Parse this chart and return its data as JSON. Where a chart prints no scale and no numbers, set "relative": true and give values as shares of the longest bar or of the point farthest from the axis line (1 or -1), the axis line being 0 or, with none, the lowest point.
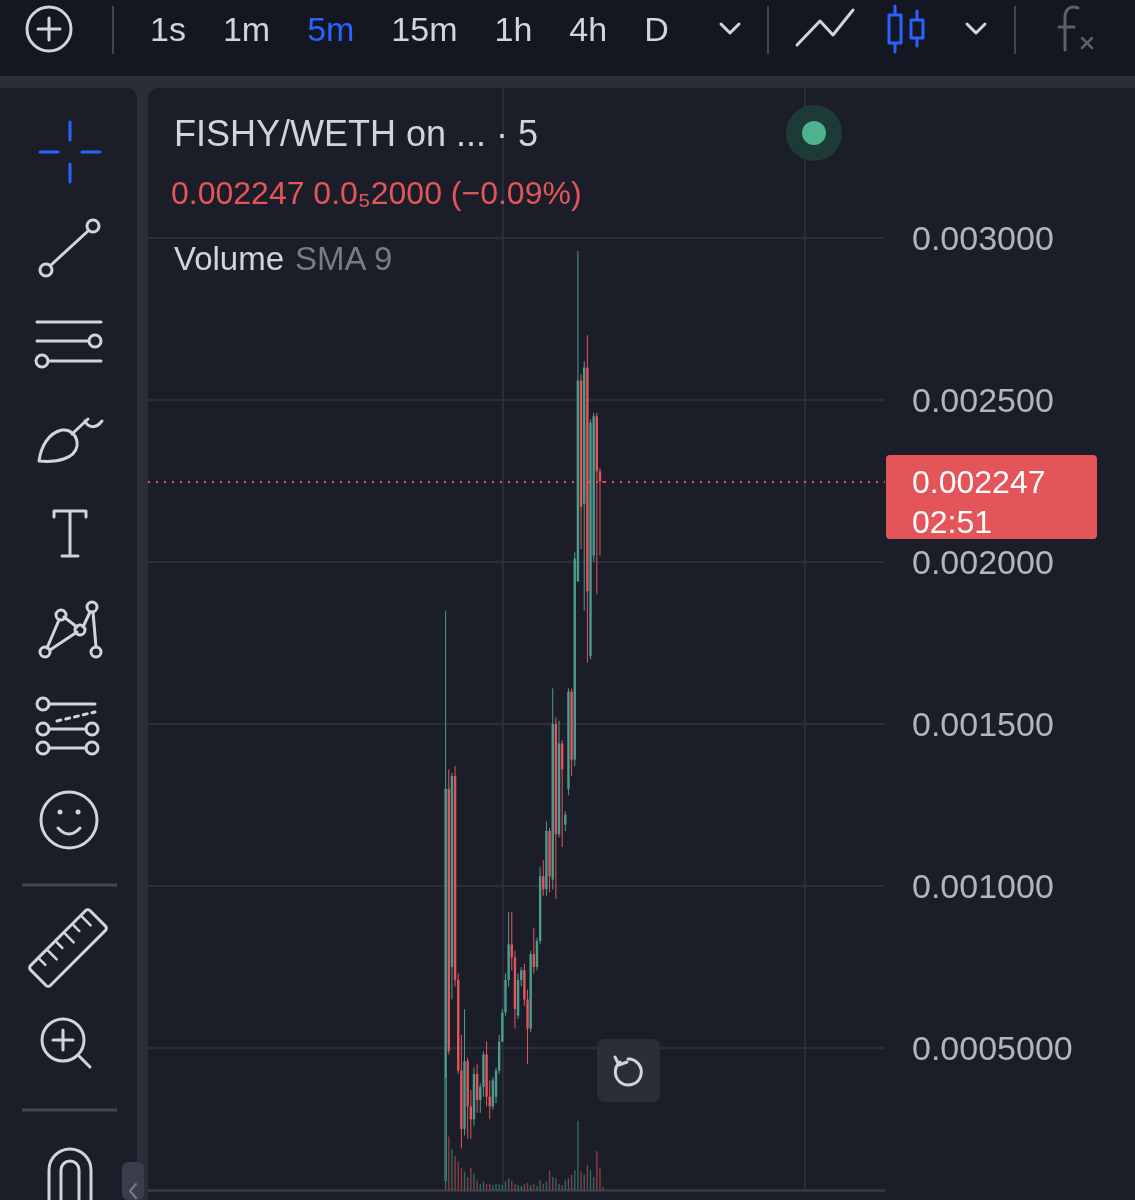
{
  "chart_data": [
    {
      "type": "candlestick",
      "title": "FISHY/WETH on ... · 5",
      "subtitle": "0.002247 0.0₅2000 (−0.09%)",
      "categories": [
        null,
        null,
        null,
        null,
        null,
        null,
        null,
        null,
        null,
        null,
        null,
        null,
        null,
        null,
        null,
        null,
        null,
        null,
        null,
        null,
        null,
        null,
        null,
        null,
        null,
        null,
        null,
        null,
        null,
        null,
        null,
        null,
        null,
        null,
        null,
        null,
        null,
        null,
        null,
        null,
        null,
        null,
        null,
        null,
        null,
        null,
        null,
        null,
        null,
        null,
        null,
        null,
        null,
        null,
        null,
        null,
        null,
        null,
        null,
        null,
        null,
        null,
        null,
        null,
        null,
        null,
        null,
        null,
        null,
        null,
        null,
        null,
        null,
        null,
        null,
        null,
        null,
        null,
        null,
        null,
        null,
        null,
        null,
        null,
        null,
        null,
        null,
        null,
        null,
        null,
        null,
        null,
        null,
        null,
        null,
        null,
        null,
        null,
        null,
        null,
        null,
        null,
        null,
        null,
        null,
        null,
        null,
        null,
        null,
        null,
        null,
        null,
        null,
        null,
        null,
        null,
        null,
        null,
        null,
        null,
        null,
        null,
        null,
        null,
        null,
        null,
        null,
        null,
        null,
        null,
        null,
        null,
        null,
        null,
        null,
        null,
        null,
        null,
        null,
        null,
        null,
        null,
        null,
        null,
        null,
        null,
        null,
        null,
        null,
        null,
        null,
        null,
        null,
        null,
        null,
        null,
        null,
        null,
        null,
        null,
        null,
        null,
        null,
        null,
        null,
        null,
        null,
        null,
        null,
        null,
        null,
        null,
        null,
        null,
        null,
        null,
        null,
        null,
        null,
        null,
        null,
        null,
        null,
        null,
        null,
        null,
        null,
        null,
        null,
        null,
        null,
        null,
        null,
        null,
        null,
        null,
        null,
        null,
        null,
        null,
        null,
        null,
        null,
        null,
        null,
        null,
        null,
        null,
        null,
        null,
        null,
        null,
        null,
        null,
        null,
        null,
        null,
        null,
        null,
        null,
        null,
        null,
        null,
        null,
        null,
        null,
        null,
        null,
        null,
        null,
        null,
        null,
        null,
        null
      ],
      "ohlc": [
        null,
        null,
        null,
        null,
        null,
        null,
        null,
        null,
        null,
        null,
        null,
        null,
        null,
        null,
        null,
        null,
        null,
        null,
        null,
        null,
        null,
        null,
        null,
        null,
        null,
        null,
        null,
        null,
        null,
        null,
        null,
        null,
        null,
        null,
        null,
        null,
        null,
        null,
        null,
        null,
        null,
        null,
        null,
        null,
        null,
        null,
        null,
        null,
        null,
        null,
        null,
        null,
        null,
        null,
        null,
        null,
        null,
        null,
        null,
        null,
        null,
        null,
        null,
        null,
        null,
        null,
        null,
        null,
        null,
        null,
        null,
        null,
        null,
        null,
        null,
        null,
        null,
        null,
        null,
        null,
        null,
        null,
        null,
        null,
        null,
        null,
        null,
        null,
        null,
        null,
        null,
        null,
        null,
        null,
        [
          9e-05,
          0.00185,
          8e-05,
          0.0013
        ],
        [
          0.0013,
          0.00136,
          0.00048,
          0.00049
        ],
        [
          0.00075,
          0.00135,
          0.00065,
          0.00134
        ],
        [
          0.00134,
          0.00137,
          0.00069,
          0.00071
        ],
        [
          0.00071,
          0.00073,
          0.00042,
          0.00043
        ],
        [
          0.00043,
          0.00054,
          0.00019,
          0.00025
        ],
        [
          0.00025,
          0.00062,
          0.00023,
          0.00046
        ],
        [
          0.00046,
          0.00047,
          0.00022,
          0.00032
        ],
        [
          0.00032,
          0.00037,
          0.00022,
          0.00028
        ],
        [
          0.00028,
          0.00044,
          0.00026,
          0.00042
        ],
        [
          0.00042,
          0.00045,
          0.0003,
          0.00034
        ],
        [
          0.00034,
          0.00039,
          0.0003,
          0.00038
        ],
        [
          0.00038,
          0.00049,
          0.00035,
          0.00048
        ],
        [
          0.00048,
          0.00052,
          0.00032,
          0.00035
        ],
        [
          0.00035,
          0.0004,
          0.00028,
          0.00032
        ],
        [
          0.00032,
          0.00041,
          0.00031,
          0.0004
        ],
        [
          0.00035,
          0.00044,
          0.00033,
          0.00043
        ],
        [
          0.00043,
          0.00054,
          0.00042,
          0.00052
        ],
        [
          0.00052,
          0.00062,
          0.00052,
          0.00061
        ],
        [
          0.00061,
          0.00073,
          0.0006,
          0.00071
        ],
        [
          0.00071,
          0.00092,
          0.00069,
          0.00082
        ],
        [
          0.00082,
          0.00092,
          0.00074,
          0.00078
        ],
        [
          0.00078,
          0.0008,
          0.00056,
          0.00062
        ],
        [
          0.0006,
          0.00073,
          0.00059,
          0.00071
        ],
        [
          0.00071,
          0.00075,
          0.00069,
          0.00074
        ],
        [
          0.00074,
          0.00076,
          0.00063,
          0.00065
        ],
        [
          0.00065,
          0.00068,
          0.00045,
          0.00056
        ],
        [
          0.00056,
          0.0008,
          0.00055,
          0.00079
        ],
        [
          0.00079,
          0.00087,
          0.00073,
          0.00075
        ],
        [
          0.00075,
          0.00084,
          0.00074,
          0.00083
        ],
        [
          0.00083,
          0.00106,
          0.00082,
          0.00103
        ],
        [
          0.00103,
          0.00108,
          0.00097,
          0.00099
        ],
        [
          0.00099,
          0.0012,
          0.00097,
          0.00117
        ],
        [
          0.00117,
          0.00118,
          0.00098,
          0.00103
        ],
        [
          0.00102,
          0.00161,
          0.00099,
          0.0015
        ],
        [
          0.0015,
          0.00152,
          0.00096,
          0.00116
        ],
        [
          0.00116,
          0.00151,
          0.00115,
          0.00144
        ],
        [
          0.00144,
          0.00145,
          0.00112,
          0.00136
        ],
        [
          0.00119,
          0.00123,
          0.00117,
          0.00122
        ],
        [
          0.0013,
          0.00161,
          0.00128,
          0.0016
        ],
        [
          0.0016,
          0.00161,
          0.00134,
          0.00139
        ],
        [
          0.00139,
          0.00203,
          0.00137,
          0.00201
        ],
        [
          0.00194,
          0.00296,
          0.00194,
          0.00256
        ],
        [
          0.00256,
          0.00258,
          0.00204,
          0.00217
        ],
        [
          0.00218,
          0.00262,
          0.00185,
          0.0026
        ],
        [
          0.0026,
          0.0027,
          0.00169,
          0.00191
        ],
        [
          0.00171,
          0.00244,
          0.0017,
          0.00243
        ],
        [
          0.00202,
          0.00246,
          0.002,
          0.00245
        ],
        [
          0.00245,
          0.00246,
          0.0019,
          0.00228
        ],
        [
          0.00228,
          0.00229,
          0.00202,
          0.002249
        ],
        [
          0.002249,
          0.00225,
          0.002245,
          0.002247
        ],
        null,
        null,
        null,
        null,
        null,
        null,
        null,
        null,
        null,
        null,
        null,
        null,
        null,
        null,
        null,
        null,
        null,
        null,
        null,
        null,
        null,
        null,
        null,
        null,
        null,
        null,
        null,
        null,
        null,
        null,
        null,
        null,
        null,
        null,
        null,
        null,
        null,
        null,
        null,
        null,
        null,
        null,
        null,
        null,
        null,
        null,
        null,
        null,
        null,
        null,
        null,
        null,
        null,
        null,
        null,
        null,
        null,
        null,
        null,
        null,
        null,
        null,
        null,
        null,
        null,
        null,
        null,
        null,
        null,
        null,
        null,
        null,
        null,
        null,
        null,
        null,
        null,
        null,
        null,
        null,
        null,
        null,
        null,
        null,
        null,
        null,
        null,
        null,
        null
      ],
      "colors": [
        null,
        null,
        null,
        null,
        null,
        null,
        null,
        null,
        null,
        null,
        null,
        null,
        null,
        null,
        null,
        null,
        null,
        null,
        null,
        null,
        null,
        null,
        null,
        null,
        null,
        null,
        null,
        null,
        null,
        null,
        null,
        null,
        null,
        null,
        null,
        null,
        null,
        null,
        null,
        null,
        null,
        null,
        null,
        null,
        null,
        null,
        null,
        null,
        null,
        null,
        null,
        null,
        null,
        null,
        null,
        null,
        null,
        null,
        null,
        null,
        null,
        null,
        null,
        null,
        null,
        null,
        null,
        null,
        null,
        null,
        null,
        null,
        null,
        null,
        null,
        null,
        null,
        null,
        null,
        null,
        null,
        null,
        null,
        null,
        null,
        null,
        null,
        null,
        null,
        null,
        null,
        null,
        null,
        null,
        "#4a9d8e",
        "#e4555a",
        "#4a9d8e",
        "#e4555a",
        "#e4555a",
        "#e4555a",
        "#4a9d8e",
        "#e4555a",
        "#e4555a",
        "#4a9d8e",
        "#e4555a",
        "#4a9d8e",
        "#4a9d8e",
        "#e4555a",
        "#e4555a",
        "#4a9d8e",
        "#4a9d8e",
        "#4a9d8e",
        "#4a9d8e",
        "#4a9d8e",
        "#4a9d8e",
        "#e4555a",
        "#e4555a",
        "#4a9d8e",
        "#4a9d8e",
        "#e4555a",
        "#e4555a",
        "#4a9d8e",
        "#e4555a",
        "#4a9d8e",
        "#4a9d8e",
        "#e4555a",
        "#4a9d8e",
        "#e4555a",
        "#4a9d8e",
        "#e4555a",
        "#4a9d8e",
        "#e4555a",
        "#4a9d8e",
        "#4a9d8e",
        "#e4555a",
        "#4a9d8e",
        "#4a9d8e",
        "#e4555a",
        "#4a9d8e",
        "#e4555a",
        "#4a9d8e",
        "#4a9d8e",
        "#e4555a",
        "#e4555a",
        "#e4555a",
        null,
        null,
        null,
        null,
        null,
        null,
        null,
        null,
        null,
        null,
        null,
        null,
        null,
        null,
        null,
        null,
        null,
        null,
        null,
        null,
        null,
        null,
        null,
        null,
        null,
        null,
        null,
        null,
        null,
        null,
        null,
        null,
        null,
        null,
        null,
        null,
        null,
        null,
        null,
        null,
        null,
        null,
        null,
        null,
        null,
        null,
        null,
        null,
        null,
        null,
        null,
        null,
        null,
        null,
        null,
        null,
        null,
        null,
        null,
        null,
        null,
        null,
        null,
        null,
        null,
        null,
        null,
        null,
        null,
        null,
        null,
        null,
        null,
        null,
        null,
        null,
        null,
        null,
        null,
        null,
        null,
        null,
        null,
        null,
        null,
        null,
        null,
        null,
        null
      ],
      "ylim": [
        6e-05,
        0.00345
      ],
      "yticks": [
        {
          "value": 0.0005,
          "label": "0.0005000"
        },
        {
          "value": 0.001,
          "label": "0.001000"
        },
        {
          "value": 0.0015,
          "label": "0.001500"
        },
        {
          "value": 0.002,
          "label": "0.002000"
        },
        {
          "value": 0.0025,
          "label": "0.002500"
        },
        {
          "value": 0.003,
          "label": "0.003000"
        }
      ],
      "grid": "y",
      "tick_labels": "y",
      "ref_lines": [
        {
          "axis": "y",
          "value": 0.002247,
          "label": "0.002247",
          "color": "#e4555a",
          "line_style": "dotted"
        }
      ],
      "annotations": [
        "1s",
        "1m",
        "5m",
        "15m",
        "1h",
        "4h",
        "D",
        "Volume",
        "SMA 9",
        "02:51"
      ]
    },
    {
      "type": "bar",
      "relative": true,
      "tick_labels": false,
      "categories": [
        null,
        null,
        null,
        null,
        null,
        null,
        null,
        null,
        null,
        null,
        null,
        null,
        null,
        null,
        null,
        null,
        null,
        null,
        null,
        null,
        null,
        null,
        null,
        null,
        null,
        null,
        null,
        null,
        null,
        null,
        null,
        null,
        null,
        null,
        null,
        null,
        null,
        null,
        null,
        null,
        null,
        null,
        null,
        null,
        null,
        null,
        null,
        null,
        null,
        null,
        null,
        null,
        null,
        null,
        null,
        null,
        null,
        null,
        null,
        null,
        null,
        null,
        null,
        null,
        null,
        null,
        null,
        null,
        null,
        null,
        null,
        null,
        null,
        null,
        null,
        null,
        null,
        null,
        null,
        null,
        null,
        null,
        null,
        null,
        null,
        null,
        null,
        null,
        null,
        null,
        null,
        null,
        null,
        null,
        null,
        null,
        null,
        null,
        null,
        null,
        null,
        null,
        null,
        null,
        null,
        null,
        null,
        null,
        null,
        null,
        null,
        null,
        null,
        null,
        null,
        null,
        null,
        null,
        null,
        null,
        null,
        null,
        null,
        null,
        null,
        null,
        null,
        null,
        null,
        null,
        null,
        null,
        null,
        null,
        null,
        null,
        null,
        null,
        null,
        null,
        null,
        null,
        null,
        null,
        null,
        null,
        null,
        null,
        null,
        null,
        null,
        null,
        null,
        null,
        null,
        null,
        null,
        null,
        null,
        null,
        null,
        null,
        null,
        null,
        null,
        null,
        null,
        null,
        null,
        null,
        null,
        null,
        null,
        null,
        null,
        null,
        null,
        null,
        null,
        null,
        null,
        null,
        null,
        null,
        null,
        null,
        null,
        null,
        null,
        null,
        null,
        null,
        null,
        null,
        null,
        null,
        null,
        null,
        null,
        null,
        null,
        null,
        null,
        null,
        null,
        null,
        null,
        null,
        null,
        null,
        null,
        null,
        null,
        null,
        null,
        null,
        null,
        null,
        null,
        null,
        null,
        null,
        null,
        null,
        null,
        null,
        null,
        null,
        null,
        null,
        null,
        null,
        null,
        null
      ],
      "values": [
        null,
        null,
        null,
        null,
        null,
        null,
        null,
        null,
        null,
        null,
        null,
        null,
        null,
        null,
        null,
        null,
        null,
        null,
        null,
        null,
        null,
        null,
        null,
        null,
        null,
        null,
        null,
        null,
        null,
        null,
        null,
        null,
        null,
        null,
        null,
        null,
        null,
        null,
        null,
        null,
        null,
        null,
        null,
        null,
        null,
        null,
        null,
        null,
        null,
        null,
        null,
        null,
        null,
        null,
        null,
        null,
        null,
        null,
        null,
        null,
        null,
        null,
        null,
        null,
        null,
        null,
        null,
        null,
        null,
        null,
        null,
        null,
        null,
        null,
        null,
        null,
        null,
        null,
        null,
        null,
        null,
        null,
        null,
        null,
        null,
        null,
        null,
        null,
        null,
        null,
        null,
        null,
        null,
        null,
        1,
        0.48,
        0.37,
        0.31,
        0.26,
        0.2,
        0.17,
        0.12,
        0.2,
        0.15,
        0.09,
        0.06,
        0.08,
        0.06,
        0.06,
        0.05,
        0.06,
        0.06,
        0.05,
        0.08,
        0.11,
        0.09,
        0.06,
        0.05,
        0.04,
        0.06,
        0.07,
        0.05,
        0.06,
        0.04,
        0.09,
        0.06,
        0.08,
        0.18,
        0.12,
        0.11,
        0.06,
        0.05,
        0.09,
        0.11,
        0.14,
        0.18,
        0.62,
        0.17,
        0.14,
        0.23,
        0.18,
        0.12,
        0.35,
        0.2,
        0.03,
        null,
        null,
        null,
        null,
        null,
        null,
        null,
        null,
        null,
        null,
        null,
        null,
        null,
        null,
        null,
        null,
        null,
        null,
        null,
        null,
        null,
        null,
        null,
        null,
        null,
        null,
        null,
        null,
        null,
        null,
        null,
        null,
        null,
        null,
        null,
        null,
        null,
        null,
        null,
        null,
        null,
        null,
        null,
        null,
        null,
        null,
        null,
        null,
        null,
        null,
        null,
        null,
        null,
        null,
        null,
        null,
        null,
        null,
        null,
        null,
        null,
        null,
        null,
        null,
        null,
        null,
        null,
        null,
        null,
        null,
        null,
        null,
        null,
        null,
        null,
        null,
        null,
        null,
        null,
        null,
        null,
        null,
        null,
        null,
        null,
        null,
        null,
        null,
        null
      ],
      "colors": [
        null,
        null,
        null,
        null,
        null,
        null,
        null,
        null,
        null,
        null,
        null,
        null,
        null,
        null,
        null,
        null,
        null,
        null,
        null,
        null,
        null,
        null,
        null,
        null,
        null,
        null,
        null,
        null,
        null,
        null,
        null,
        null,
        null,
        null,
        null,
        null,
        null,
        null,
        null,
        null,
        null,
        null,
        null,
        null,
        null,
        null,
        null,
        null,
        null,
        null,
        null,
        null,
        null,
        null,
        null,
        null,
        null,
        null,
        null,
        null,
        null,
        null,
        null,
        null,
        null,
        null,
        null,
        null,
        null,
        null,
        null,
        null,
        null,
        null,
        null,
        null,
        null,
        null,
        null,
        null,
        null,
        null,
        null,
        null,
        null,
        null,
        null,
        null,
        null,
        null,
        null,
        null,
        null,
        null,
        "#2e6a62",
        "#8a3b40",
        "#2e6a62",
        "#8a3b40",
        "#8a3b40",
        "#8a3b40",
        "#2e6a62",
        "#8a3b40",
        "#8a3b40",
        "#2e6a62",
        "#8a3b40",
        "#2e6a62",
        "#2e6a62",
        "#8a3b40",
        "#8a3b40",
        "#2e6a62",
        "#2e6a62",
        "#2e6a62",
        "#2e6a62",
        "#2e6a62",
        "#2e6a62",
        "#8a3b40",
        "#8a3b40",
        "#2e6a62",
        "#2e6a62",
        "#8a3b40",
        "#8a3b40",
        "#2e6a62",
        "#8a3b40",
        "#2e6a62",
        "#2e6a62",
        "#8a3b40",
        "#2e6a62",
        "#8a3b40",
        "#2e6a62",
        "#8a3b40",
        "#2e6a62",
        "#8a3b40",
        "#2e6a62",
        "#2e6a62",
        "#8a3b40",
        "#2e6a62",
        "#2e6a62",
        "#8a3b40",
        "#2e6a62",
        "#8a3b40",
        "#2e6a62",
        "#2e6a62",
        "#8a3b40",
        "#8a3b40",
        "#8a3b40",
        null,
        null,
        null,
        null,
        null,
        null,
        null,
        null,
        null,
        null,
        null,
        null,
        null,
        null,
        null,
        null,
        null,
        null,
        null,
        null,
        null,
        null,
        null,
        null,
        null,
        null,
        null,
        null,
        null,
        null,
        null,
        null,
        null,
        null,
        null,
        null,
        null,
        null,
        null,
        null,
        null,
        null,
        null,
        null,
        null,
        null,
        null,
        null,
        null,
        null,
        null,
        null,
        null,
        null,
        null,
        null,
        null,
        null,
        null,
        null,
        null,
        null,
        null,
        null,
        null,
        null,
        null,
        null,
        null,
        null,
        null,
        null,
        null,
        null,
        null,
        null,
        null,
        null,
        null,
        null,
        null,
        null,
        null,
        null,
        null,
        null,
        null,
        null,
        null
      ]
    }
  ]
}
